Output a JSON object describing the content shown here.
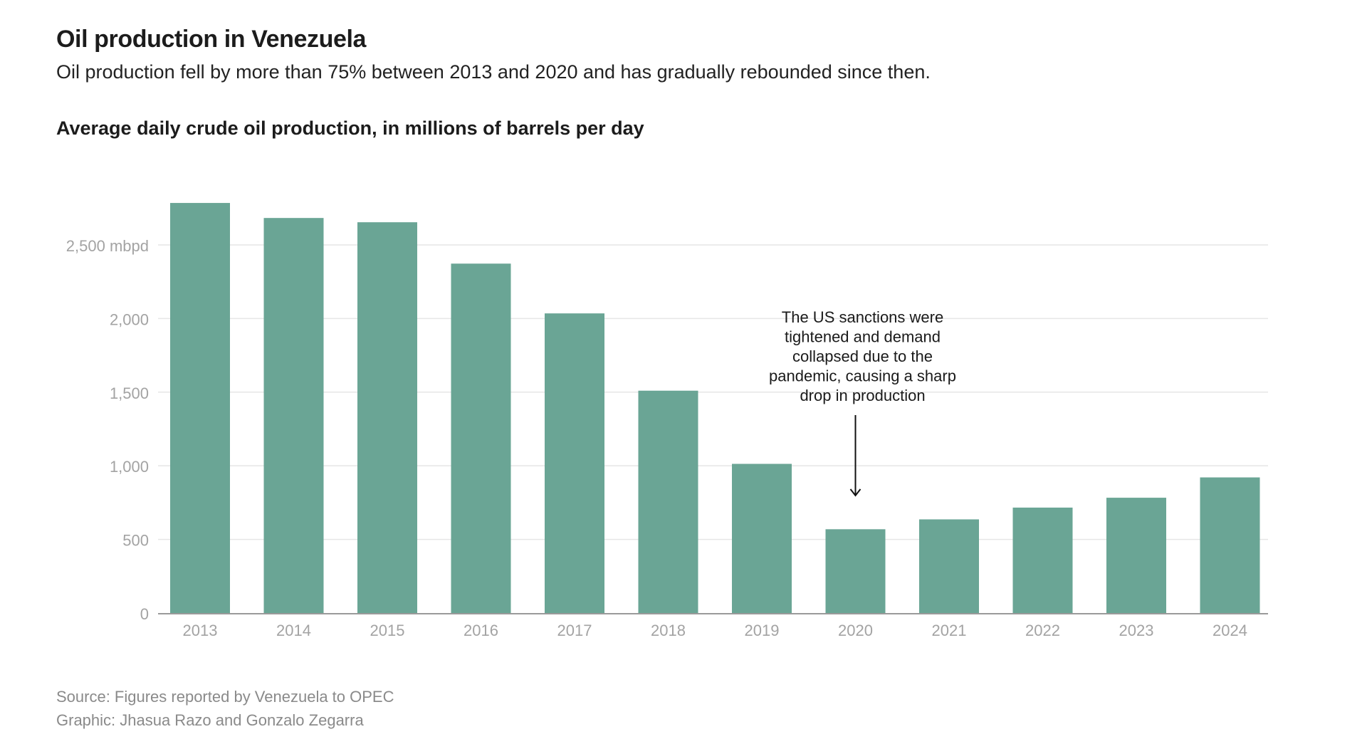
{
  "header": {
    "title": "Oil production in Venezuela",
    "subtitle": "Oil production fell by more than 75% between 2013 and 2020 and has gradually rebounded since then.",
    "chart_heading": "Average daily crude oil production, in millions of barrels per day"
  },
  "footer": {
    "source": "Source: Figures reported by Venezuela to OPEC",
    "graphic": "Graphic: Jhasua Razo and Gonzalo Zegarra"
  },
  "colors": {
    "bar": "#6aa595",
    "grid": "#e6e6e6",
    "axis": "#9a9a9a",
    "tick_text": "#a3a3a3",
    "annotation_text": "#1a1a1a"
  },
  "chart_data": {
    "type": "bar",
    "title": "Oil production in Venezuela",
    "subtitle": "Oil production fell by more than 75% between 2013 and 2020 and has gradually rebounded since then.",
    "ylabel": "Average daily crude oil production, in millions of barrels per day",
    "xlabel": "",
    "categories": [
      "2013",
      "2014",
      "2015",
      "2016",
      "2017",
      "2018",
      "2019",
      "2020",
      "2021",
      "2022",
      "2023",
      "2024"
    ],
    "values": [
      2785,
      2683,
      2654,
      2373,
      2035,
      1510,
      1013,
      569,
      636,
      716,
      783,
      921
    ],
    "ylim": [
      0,
      2900
    ],
    "yticks": [
      0,
      500,
      1000,
      1500,
      2000,
      2500
    ],
    "ytick_labels": [
      "0",
      "500",
      "1,000",
      "1,500",
      "2,000",
      "2,500 mbpd"
    ],
    "grid": true,
    "legend": "none",
    "annotation": {
      "category": "2020",
      "lines": [
        "The US sanctions were",
        "tightened and demand",
        "collapsed due to the",
        "pandemic, causing a sharp",
        "drop in production"
      ]
    }
  }
}
